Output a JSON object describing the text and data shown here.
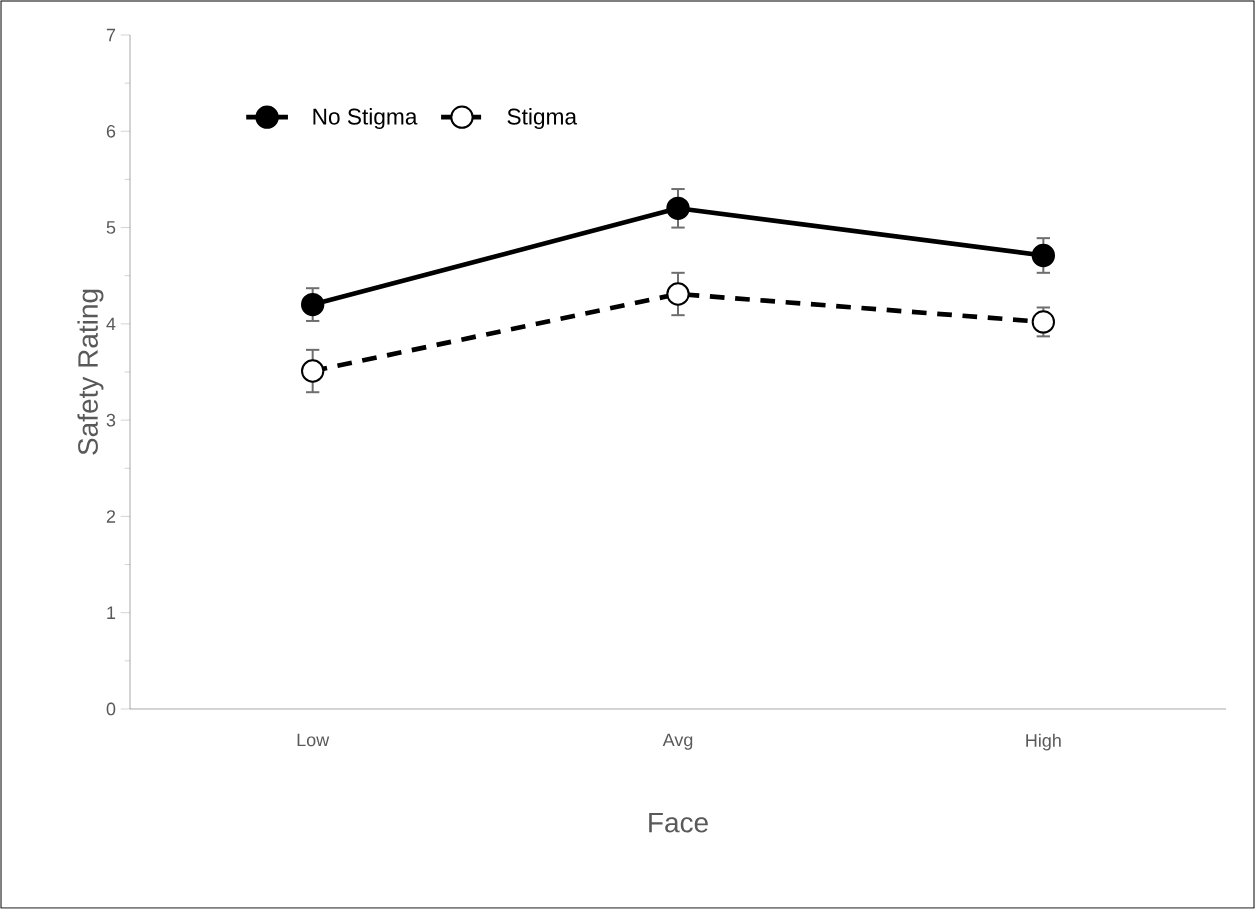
{
  "chart_data": {
    "type": "line",
    "xlabel": "Face",
    "ylabel": "Safety Rating",
    "categories": [
      "Low",
      "Avg",
      "High"
    ],
    "series": [
      {
        "name": "No Stigma",
        "color": "#000000",
        "marker": "circle",
        "line_style": "solid",
        "values": [
          4.2,
          5.2,
          4.71
        ],
        "errors": [
          0.17,
          0.2,
          0.18
        ]
      },
      {
        "name": "Stigma",
        "color": "#000000",
        "marker": "open circle",
        "line_style": "dashed",
        "values": [
          3.51,
          4.31,
          4.02
        ],
        "errors": [
          0.22,
          0.22,
          0.15
        ]
      }
    ],
    "ylim": [
      0,
      7
    ],
    "yticks": [
      0,
      1,
      2,
      3,
      4,
      5,
      6,
      7
    ],
    "grid": false,
    "legend": "top left"
  }
}
